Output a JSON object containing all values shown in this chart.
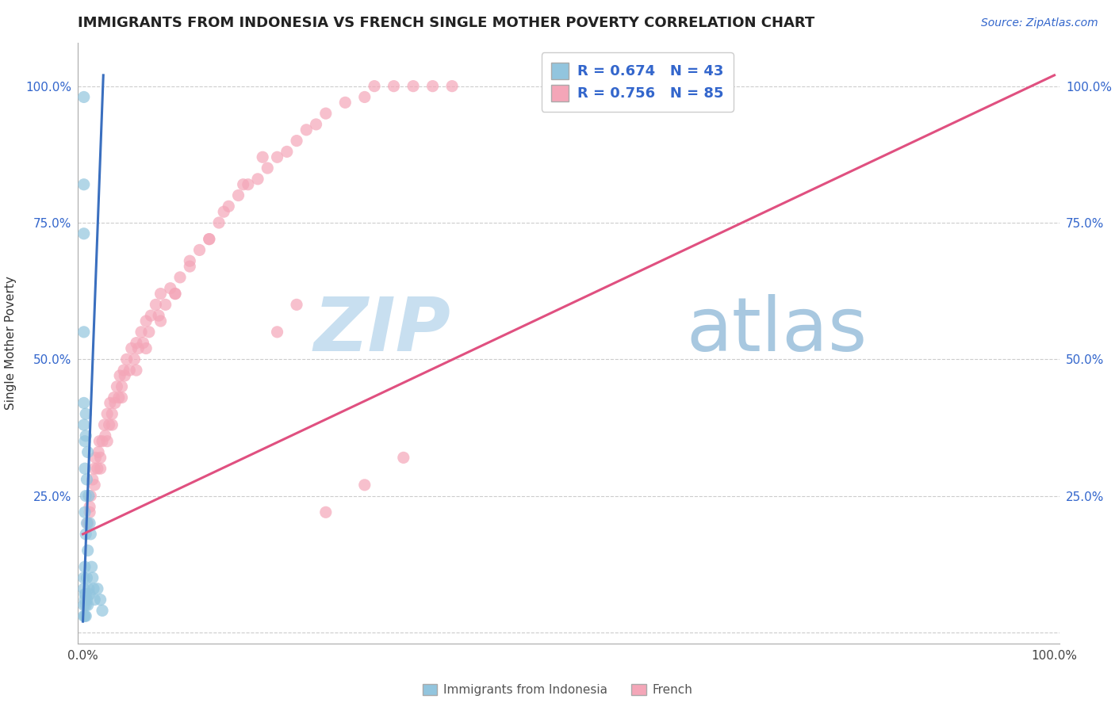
{
  "title": "IMMIGRANTS FROM INDONESIA VS FRENCH SINGLE MOTHER POVERTY CORRELATION CHART",
  "source": "Source: ZipAtlas.com",
  "ylabel": "Single Mother Poverty",
  "legend_label1": "Immigrants from Indonesia",
  "legend_label2": "French",
  "R1": 0.674,
  "N1": 43,
  "R2": 0.756,
  "N2": 85,
  "blue_color": "#92C5DE",
  "pink_color": "#F4A6B8",
  "blue_line_color": "#3A6FBF",
  "pink_line_color": "#E05080",
  "watermark_zip_color": "#C8DFF0",
  "watermark_atlas_color": "#A8C8E0",
  "title_color": "#222222",
  "source_color": "#3366CC",
  "axis_label_color": "#3366CC",
  "bottom_legend_color": "#555555",
  "legend_R_color": "#3366CC",
  "blue_x": [
    0.001,
    0.001,
    0.001,
    0.001,
    0.001,
    0.001,
    0.001,
    0.001,
    0.002,
    0.002,
    0.002,
    0.002,
    0.002,
    0.002,
    0.003,
    0.003,
    0.003,
    0.003,
    0.003,
    0.003,
    0.004,
    0.004,
    0.004,
    0.004,
    0.005,
    0.005,
    0.005,
    0.006,
    0.006,
    0.007,
    0.007,
    0.008,
    0.009,
    0.01,
    0.011,
    0.012,
    0.015,
    0.018,
    0.02,
    0.001,
    0.001,
    0.002,
    0.003
  ],
  "blue_y": [
    0.98,
    0.82,
    0.73,
    0.42,
    0.38,
    0.1,
    0.08,
    0.05,
    0.35,
    0.3,
    0.22,
    0.12,
    0.07,
    0.06,
    0.4,
    0.36,
    0.25,
    0.18,
    0.07,
    0.05,
    0.28,
    0.2,
    0.1,
    0.06,
    0.33,
    0.15,
    0.05,
    0.25,
    0.08,
    0.2,
    0.07,
    0.18,
    0.12,
    0.1,
    0.08,
    0.06,
    0.08,
    0.06,
    0.04,
    0.55,
    0.03,
    0.03,
    0.03
  ],
  "pink_x": [
    0.005,
    0.007,
    0.008,
    0.01,
    0.012,
    0.013,
    0.015,
    0.016,
    0.017,
    0.018,
    0.02,
    0.022,
    0.023,
    0.025,
    0.027,
    0.028,
    0.03,
    0.032,
    0.033,
    0.035,
    0.037,
    0.038,
    0.04,
    0.042,
    0.043,
    0.045,
    0.048,
    0.05,
    0.053,
    0.055,
    0.057,
    0.06,
    0.062,
    0.065,
    0.068,
    0.07,
    0.075,
    0.078,
    0.08,
    0.085,
    0.09,
    0.095,
    0.1,
    0.11,
    0.12,
    0.13,
    0.14,
    0.15,
    0.16,
    0.17,
    0.18,
    0.19,
    0.2,
    0.21,
    0.22,
    0.23,
    0.24,
    0.25,
    0.27,
    0.29,
    0.3,
    0.32,
    0.34,
    0.36,
    0.38,
    0.007,
    0.012,
    0.018,
    0.025,
    0.03,
    0.04,
    0.055,
    0.065,
    0.08,
    0.095,
    0.11,
    0.13,
    0.145,
    0.165,
    0.185,
    0.2,
    0.22,
    0.25,
    0.29,
    0.33
  ],
  "pink_y": [
    0.2,
    0.22,
    0.25,
    0.28,
    0.3,
    0.32,
    0.3,
    0.33,
    0.35,
    0.32,
    0.35,
    0.38,
    0.36,
    0.4,
    0.38,
    0.42,
    0.4,
    0.43,
    0.42,
    0.45,
    0.43,
    0.47,
    0.45,
    0.48,
    0.47,
    0.5,
    0.48,
    0.52,
    0.5,
    0.53,
    0.52,
    0.55,
    0.53,
    0.57,
    0.55,
    0.58,
    0.6,
    0.58,
    0.62,
    0.6,
    0.63,
    0.62,
    0.65,
    0.68,
    0.7,
    0.72,
    0.75,
    0.78,
    0.8,
    0.82,
    0.83,
    0.85,
    0.87,
    0.88,
    0.9,
    0.92,
    0.93,
    0.95,
    0.97,
    0.98,
    1.0,
    1.0,
    1.0,
    1.0,
    1.0,
    0.23,
    0.27,
    0.3,
    0.35,
    0.38,
    0.43,
    0.48,
    0.52,
    0.57,
    0.62,
    0.67,
    0.72,
    0.77,
    0.82,
    0.87,
    0.55,
    0.6,
    0.22,
    0.27,
    0.32
  ],
  "blue_line_x0": 0.0,
  "blue_line_x1": 0.021,
  "blue_line_y0": 0.02,
  "blue_line_y1": 1.02,
  "pink_line_x0": 0.0,
  "pink_line_x1": 1.0,
  "pink_line_y0": 0.18,
  "pink_line_y1": 1.02,
  "xmin": -0.005,
  "xmax": 1.005,
  "ymin": -0.02,
  "ymax": 1.08,
  "yticks": [
    0.0,
    0.25,
    0.5,
    0.75,
    1.0
  ],
  "ytick_labels_left": [
    "",
    "25.0%",
    "50.0%",
    "75.0%",
    "100.0%"
  ],
  "ytick_labels_right": [
    "25.0%",
    "50.0%",
    "75.0%",
    "100.0%"
  ],
  "xtick_left_val": 0.0,
  "xtick_right_val": 1.0,
  "xtick_mid_val": 0.33,
  "grid_color": "#CCCCCC",
  "spine_color": "#AAAAAA",
  "scatter_size": 120,
  "scatter_alpha": 0.7
}
